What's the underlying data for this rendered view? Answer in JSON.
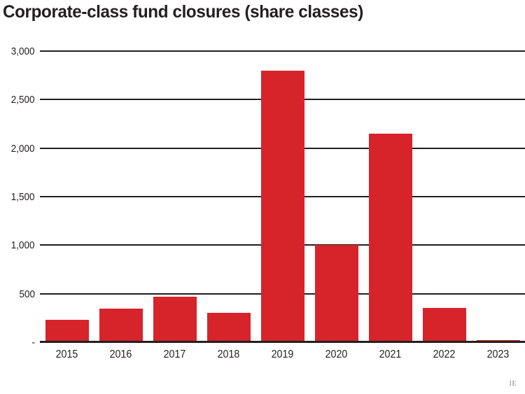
{
  "title": "Corporate-class fund closures (share classes)",
  "credit": "IE",
  "colors": {
    "bar": "#d7232a",
    "grid": "#231f20",
    "text": "#231f20",
    "credit": "#8a8a8a"
  },
  "chart_data": {
    "type": "bar",
    "title": "Corporate-class fund closures (share classes)",
    "categories": [
      "2015",
      "2016",
      "2017",
      "2018",
      "2019",
      "2020",
      "2021",
      "2022",
      "2023"
    ],
    "values": [
      230,
      345,
      470,
      300,
      2800,
      1000,
      2150,
      350,
      25
    ],
    "xlabel": "",
    "ylabel": "",
    "ylim": [
      0,
      3000
    ],
    "yticks": [
      0,
      500,
      1000,
      1500,
      2000,
      2500,
      3000
    ],
    "ytick_labels": [
      "-",
      "500",
      "1,000",
      "1,500",
      "2,000",
      "2,500",
      "3,000"
    ],
    "grid": true,
    "legend": false,
    "bar_color": "#d7232a",
    "source_mark": "IE"
  }
}
